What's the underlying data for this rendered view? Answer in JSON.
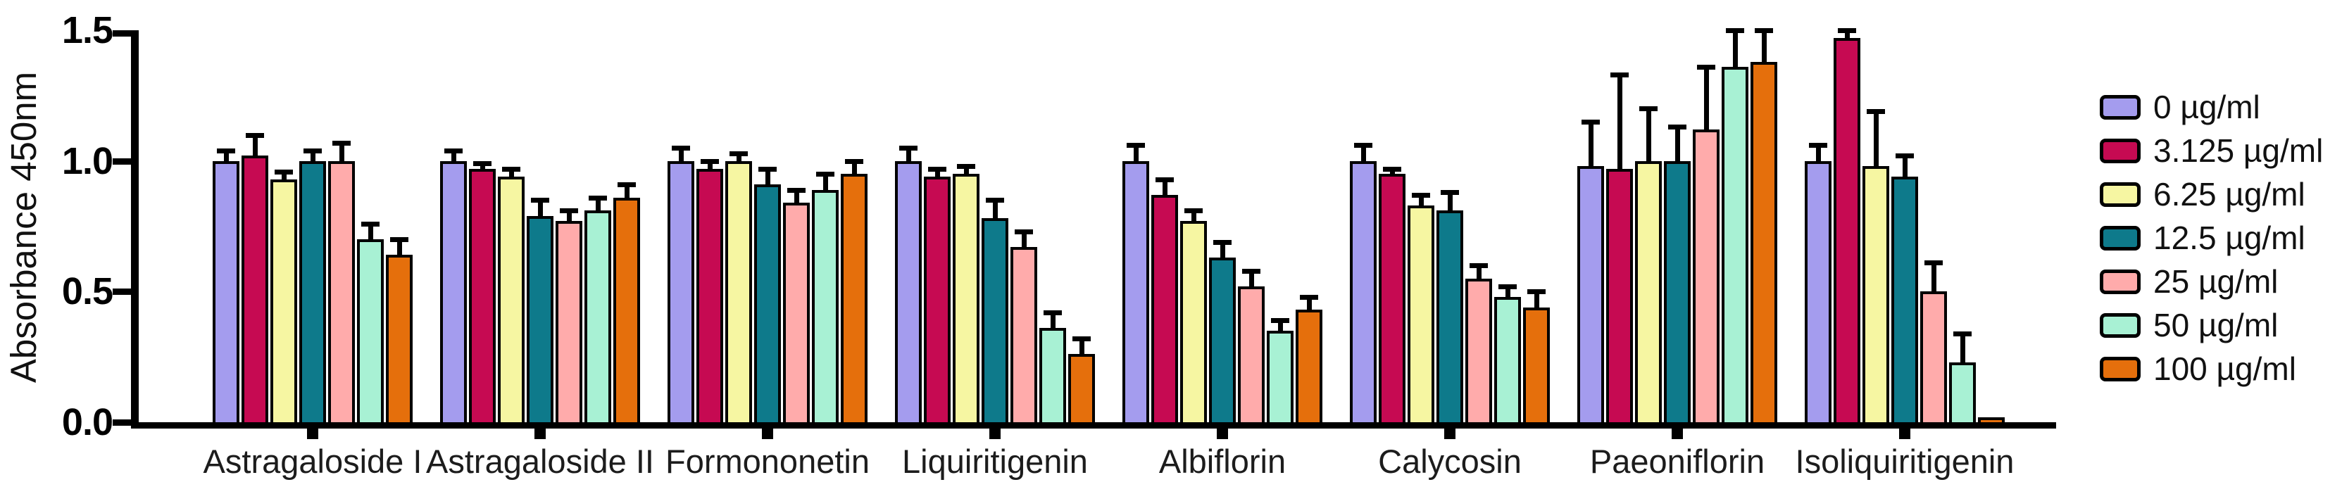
{
  "chart_data": {
    "type": "bar",
    "title": "",
    "ylabel": "Absorbance 450nm",
    "xlabel": "",
    "ylim": [
      0,
      1.5
    ],
    "yticks": [
      0.0,
      0.5,
      1.0,
      1.5
    ],
    "ytick_labels": [
      "0.0",
      "0.5",
      "1.0",
      "1.5"
    ],
    "grid": false,
    "legend_position": "right",
    "error_bars": "upward SD caps",
    "categories": [
      "Astragaloside I",
      "Astragaloside II",
      "Formononetin",
      "Liquiritigenin",
      "Albiflorin",
      "Calycosin",
      "Paeoniflorin",
      "Isoliquiritigenin"
    ],
    "series": [
      {
        "name": "0 µg/ml",
        "color": "#a49cee",
        "values": [
          1.0,
          1.0,
          1.0,
          1.0,
          1.0,
          1.0,
          0.98,
          1.0
        ],
        "errors": [
          0.04,
          0.04,
          0.05,
          0.05,
          0.06,
          0.06,
          0.17,
          0.06
        ]
      },
      {
        "name": "3.125 µg/ml",
        "color": "#c60a52",
        "values": [
          1.02,
          0.97,
          0.97,
          0.94,
          0.87,
          0.95,
          0.97,
          1.47
        ],
        "errors": [
          0.08,
          0.02,
          0.03,
          0.03,
          0.06,
          0.02,
          0.36,
          0.03
        ]
      },
      {
        "name": "6.25 µg/ml",
        "color": "#f6f6a2",
        "values": [
          0.93,
          0.94,
          1.0,
          0.95,
          0.77,
          0.83,
          1.0,
          0.98
        ],
        "errors": [
          0.03,
          0.03,
          0.03,
          0.03,
          0.04,
          0.04,
          0.2,
          0.21
        ]
      },
      {
        "name": "12.5 µg/ml",
        "color": "#0e7a8b",
        "values": [
          1.0,
          0.79,
          0.91,
          0.78,
          0.63,
          0.81,
          1.0,
          0.94
        ],
        "errors": [
          0.04,
          0.06,
          0.06,
          0.07,
          0.06,
          0.07,
          0.13,
          0.08
        ]
      },
      {
        "name": "25 µg/ml",
        "color": "#ffabab",
        "values": [
          1.0,
          0.77,
          0.84,
          0.67,
          0.52,
          0.55,
          1.12,
          0.5
        ],
        "errors": [
          0.07,
          0.04,
          0.05,
          0.06,
          0.06,
          0.05,
          0.24,
          0.11
        ]
      },
      {
        "name": "50 µg/ml",
        "color": "#a8f1d4",
        "values": [
          0.7,
          0.81,
          0.89,
          0.36,
          0.35,
          0.48,
          1.36,
          0.23
        ],
        "errors": [
          0.06,
          0.05,
          0.06,
          0.06,
          0.04,
          0.04,
          0.14,
          0.11
        ]
      },
      {
        "name": "100 µg/ml",
        "color": "#e56f0c",
        "values": [
          0.64,
          0.86,
          0.95,
          0.26,
          0.43,
          0.44,
          1.38,
          0.02
        ],
        "errors": [
          0.06,
          0.05,
          0.05,
          0.06,
          0.05,
          0.06,
          0.12,
          0.0
        ]
      }
    ]
  }
}
